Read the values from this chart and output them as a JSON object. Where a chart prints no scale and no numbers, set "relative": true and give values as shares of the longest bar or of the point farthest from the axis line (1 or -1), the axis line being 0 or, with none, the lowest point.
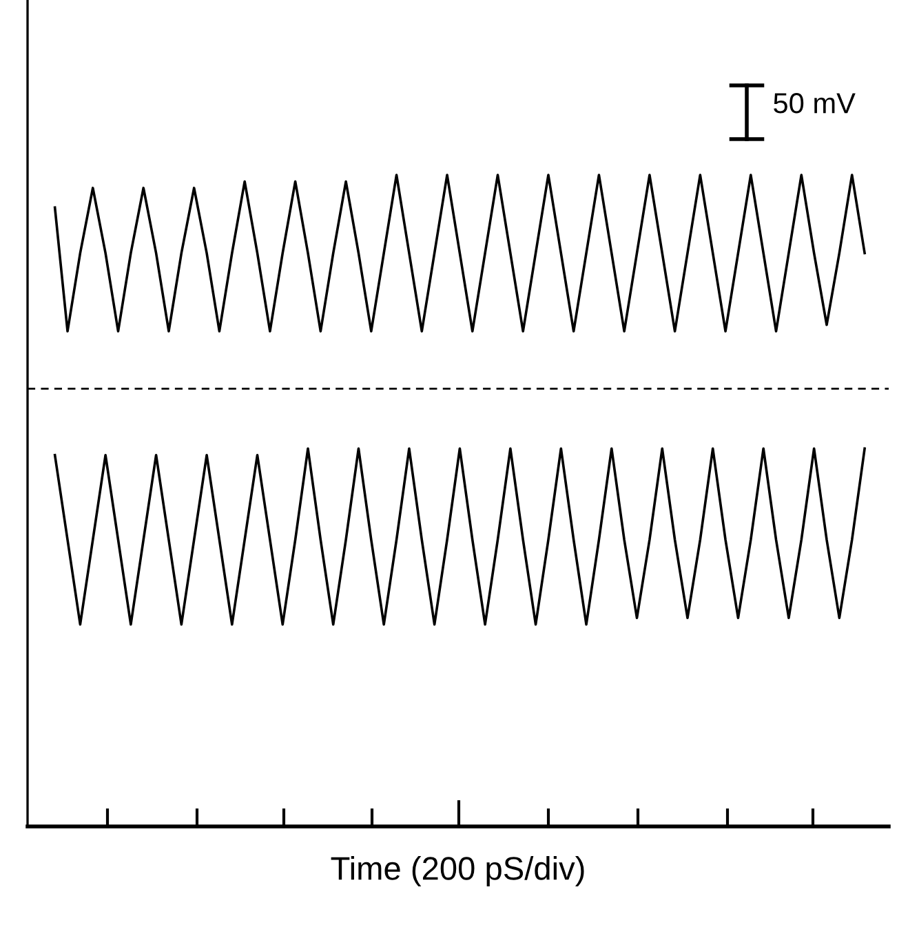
{
  "chart_data": {
    "type": "line",
    "relative": true,
    "xlabel": "Time (200 pS/div)",
    "annotations": [
      "50 mV"
    ],
    "line_style": "solid",
    "categories": [
      null,
      null,
      null,
      null,
      null,
      null,
      null,
      null,
      null,
      null,
      null,
      null,
      null,
      null,
      null,
      null,
      null,
      null,
      null,
      null,
      null,
      null,
      null,
      null,
      null,
      null,
      null,
      null,
      null,
      null,
      null,
      null,
      null,
      null,
      null,
      null,
      null,
      null,
      null,
      null,
      null,
      null,
      null,
      null,
      null,
      null,
      null,
      null,
      null,
      null,
      null,
      null,
      null,
      null,
      null,
      null,
      null,
      null,
      null,
      null,
      null,
      null,
      null,
      null,
      null
    ],
    "series": [
      {
        "color": "#000000",
        "values": [
          0.95,
          0.76,
          0.88,
          0.98,
          0.88,
          0.76,
          0.88,
          0.98,
          0.88,
          0.76,
          0.88,
          0.98,
          0.88,
          0.76,
          0.88,
          0.99,
          0.88,
          0.76,
          0.88,
          0.99,
          0.88,
          0.76,
          0.88,
          0.99,
          0.88,
          0.76,
          0.88,
          1.0,
          0.88,
          0.76,
          0.88,
          1.0,
          0.88,
          0.76,
          0.88,
          1.0,
          0.88,
          0.76,
          0.88,
          1.0,
          0.88,
          0.76,
          0.88,
          1.0,
          0.88,
          0.76,
          0.88,
          1.0,
          0.88,
          0.76,
          0.88,
          1.0,
          0.88,
          0.76,
          0.88,
          1.0,
          0.88,
          0.76,
          0.88,
          1.0,
          0.88,
          0.77,
          0.88,
          1.0,
          0.88
        ]
      },
      {
        "color": "#000000",
        "values": [
          0.57,
          0.44,
          0.31,
          0.44,
          0.57,
          0.44,
          0.31,
          0.44,
          0.57,
          0.44,
          0.31,
          0.44,
          0.57,
          0.44,
          0.31,
          0.44,
          0.57,
          0.44,
          0.31,
          0.44,
          0.58,
          0.44,
          0.31,
          0.44,
          0.58,
          0.44,
          0.31,
          0.44,
          0.58,
          0.44,
          0.31,
          0.44,
          0.58,
          0.44,
          0.31,
          0.44,
          0.58,
          0.44,
          0.31,
          0.44,
          0.58,
          0.44,
          0.31,
          0.44,
          0.58,
          0.44,
          0.32,
          0.44,
          0.58,
          0.44,
          0.32,
          0.44,
          0.58,
          0.44,
          0.32,
          0.44,
          0.58,
          0.44,
          0.32,
          0.44,
          0.58,
          0.44,
          0.32,
          0.44,
          0.58
        ]
      }
    ],
    "ref_lines": [
      {
        "axis": "y",
        "value": 0.672,
        "label": null,
        "color": "#000000",
        "line_style": "dashed"
      }
    ]
  }
}
